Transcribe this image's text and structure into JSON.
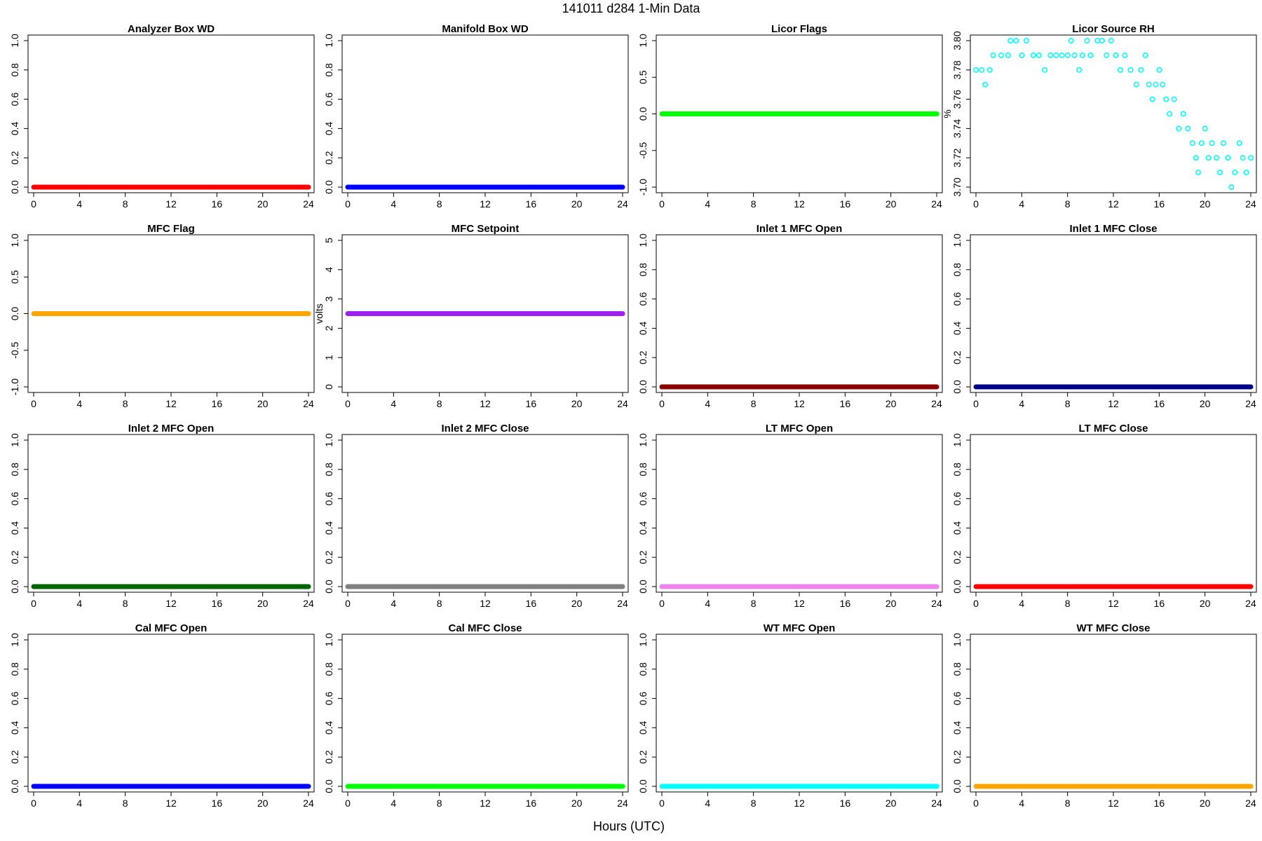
{
  "figure": {
    "title": "141011   d284   1-Min Data",
    "xlabel": "Hours (UTC)"
  },
  "chart_data": [
    {
      "type": "scatter",
      "title": "Analyzer Box WD",
      "ylabel": "",
      "color": "#ff0000",
      "ylim": [
        0,
        1
      ],
      "yticks": [
        "0.0",
        "0.2",
        "0.4",
        "0.6",
        "0.8",
        "1.0"
      ],
      "xlim": [
        0,
        24
      ],
      "xticks": [
        "0",
        "4",
        "8",
        "12",
        "16",
        "20",
        "24"
      ],
      "series": [
        {
          "x_range": [
            0,
            24
          ],
          "value": 0
        }
      ]
    },
    {
      "type": "scatter",
      "title": "Manifold Box WD",
      "ylabel": "",
      "color": "#0000ff",
      "ylim": [
        0,
        1
      ],
      "yticks": [
        "0.0",
        "0.2",
        "0.4",
        "0.6",
        "0.8",
        "1.0"
      ],
      "xlim": [
        0,
        24
      ],
      "xticks": [
        "0",
        "4",
        "8",
        "12",
        "16",
        "20",
        "24"
      ],
      "series": [
        {
          "x_range": [
            0,
            24
          ],
          "value": 0
        }
      ]
    },
    {
      "type": "scatter",
      "title": "Licor Flags",
      "ylabel": "",
      "color": "#00ff00",
      "ylim": [
        -1,
        1
      ],
      "yticks": [
        "-1.0",
        "-0.5",
        "0.0",
        "0.5",
        "1.0"
      ],
      "xlim": [
        0,
        24
      ],
      "xticks": [
        "0",
        "4",
        "8",
        "12",
        "16",
        "20",
        "24"
      ],
      "series": [
        {
          "x_range": [
            0,
            24
          ],
          "value": 0
        }
      ]
    },
    {
      "type": "scatter",
      "title": "Licor Source RH",
      "ylabel": "%",
      "color": "#00ffff",
      "ylim": [
        3.7,
        3.8
      ],
      "yticks": [
        "3.70",
        "3.72",
        "3.74",
        "3.76",
        "3.78",
        "3.80"
      ],
      "xlim": [
        0,
        24
      ],
      "xticks": [
        "0",
        "4",
        "8",
        "12",
        "16",
        "20",
        "24"
      ],
      "points": [
        [
          0,
          3.78
        ],
        [
          0.5,
          3.78
        ],
        [
          0.8,
          3.77
        ],
        [
          1.2,
          3.78
        ],
        [
          1.5,
          3.79
        ],
        [
          2.2,
          3.79
        ],
        [
          2.8,
          3.79
        ],
        [
          3.0,
          3.8
        ],
        [
          3.5,
          3.8
        ],
        [
          4.0,
          3.79
        ],
        [
          4.4,
          3.8
        ],
        [
          5.0,
          3.79
        ],
        [
          5.5,
          3.79
        ],
        [
          6.0,
          3.78
        ],
        [
          6.5,
          3.79
        ],
        [
          7.0,
          3.79
        ],
        [
          7.5,
          3.79
        ],
        [
          8.0,
          3.79
        ],
        [
          8.3,
          3.8
        ],
        [
          8.6,
          3.79
        ],
        [
          9.0,
          3.78
        ],
        [
          9.3,
          3.79
        ],
        [
          9.7,
          3.8
        ],
        [
          10.0,
          3.79
        ],
        [
          10.6,
          3.8
        ],
        [
          11.0,
          3.8
        ],
        [
          11.4,
          3.79
        ],
        [
          11.8,
          3.8
        ],
        [
          12.2,
          3.79
        ],
        [
          12.6,
          3.78
        ],
        [
          13.0,
          3.79
        ],
        [
          13.5,
          3.78
        ],
        [
          14.0,
          3.77
        ],
        [
          14.4,
          3.78
        ],
        [
          14.8,
          3.79
        ],
        [
          15.1,
          3.77
        ],
        [
          15.4,
          3.76
        ],
        [
          15.7,
          3.77
        ],
        [
          16.0,
          3.78
        ],
        [
          16.3,
          3.77
        ],
        [
          16.6,
          3.76
        ],
        [
          16.9,
          3.75
        ],
        [
          17.3,
          3.76
        ],
        [
          17.7,
          3.74
        ],
        [
          18.1,
          3.75
        ],
        [
          18.5,
          3.74
        ],
        [
          18.9,
          3.73
        ],
        [
          19.2,
          3.72
        ],
        [
          19.4,
          3.71
        ],
        [
          19.7,
          3.73
        ],
        [
          20.0,
          3.74
        ],
        [
          20.3,
          3.72
        ],
        [
          20.6,
          3.73
        ],
        [
          21.0,
          3.72
        ],
        [
          21.3,
          3.71
        ],
        [
          21.6,
          3.73
        ],
        [
          22.0,
          3.72
        ],
        [
          22.3,
          3.7
        ],
        [
          22.6,
          3.71
        ],
        [
          23.0,
          3.73
        ],
        [
          23.3,
          3.72
        ],
        [
          23.6,
          3.71
        ],
        [
          24.0,
          3.72
        ]
      ]
    },
    {
      "type": "scatter",
      "title": "MFC Flag",
      "ylabel": "",
      "color": "#ffa500",
      "ylim": [
        -1,
        1
      ],
      "yticks": [
        "-1.0",
        "-0.5",
        "0.0",
        "0.5",
        "1.0"
      ],
      "xlim": [
        0,
        24
      ],
      "xticks": [
        "0",
        "4",
        "8",
        "12",
        "16",
        "20",
        "24"
      ],
      "series": [
        {
          "x_range": [
            0,
            24
          ],
          "value": 0
        }
      ]
    },
    {
      "type": "scatter",
      "title": "MFC Setpoint",
      "ylabel": "volts",
      "color": "#a020f0",
      "ylim": [
        0,
        5
      ],
      "yticks": [
        "0",
        "1",
        "2",
        "3",
        "4",
        "5"
      ],
      "xlim": [
        0,
        24
      ],
      "xticks": [
        "0",
        "4",
        "8",
        "12",
        "16",
        "20",
        "24"
      ],
      "series": [
        {
          "x_range": [
            0,
            24
          ],
          "value": 2.5
        }
      ]
    },
    {
      "type": "scatter",
      "title": "Inlet 1 MFC Open",
      "ylabel": "",
      "color": "#8b0000",
      "ylim": [
        0,
        1
      ],
      "yticks": [
        "0.0",
        "0.2",
        "0.4",
        "0.6",
        "0.8",
        "1.0"
      ],
      "xlim": [
        0,
        24
      ],
      "xticks": [
        "0",
        "4",
        "8",
        "12",
        "16",
        "20",
        "24"
      ],
      "series": [
        {
          "x_range": [
            0,
            24
          ],
          "value": 0
        }
      ]
    },
    {
      "type": "scatter",
      "title": "Inlet 1 MFC Close",
      "ylabel": "",
      "color": "#00008b",
      "ylim": [
        0,
        1
      ],
      "yticks": [
        "0.0",
        "0.2",
        "0.4",
        "0.6",
        "0.8",
        "1.0"
      ],
      "xlim": [
        0,
        24
      ],
      "xticks": [
        "0",
        "4",
        "8",
        "12",
        "16",
        "20",
        "24"
      ],
      "series": [
        {
          "x_range": [
            0,
            24
          ],
          "value": 0
        }
      ]
    },
    {
      "type": "scatter",
      "title": "Inlet 2 MFC Open",
      "ylabel": "",
      "color": "#006400",
      "ylim": [
        0,
        1
      ],
      "yticks": [
        "0.0",
        "0.2",
        "0.4",
        "0.6",
        "0.8",
        "1.0"
      ],
      "xlim": [
        0,
        24
      ],
      "xticks": [
        "0",
        "4",
        "8",
        "12",
        "16",
        "20",
        "24"
      ],
      "series": [
        {
          "x_range": [
            0,
            24
          ],
          "value": 0
        }
      ]
    },
    {
      "type": "scatter",
      "title": "Inlet 2 MFC Close",
      "ylabel": "",
      "color": "#808080",
      "ylim": [
        0,
        1
      ],
      "yticks": [
        "0.0",
        "0.2",
        "0.4",
        "0.6",
        "0.8",
        "1.0"
      ],
      "xlim": [
        0,
        24
      ],
      "xticks": [
        "0",
        "4",
        "8",
        "12",
        "16",
        "20",
        "24"
      ],
      "series": [
        {
          "x_range": [
            0,
            24
          ],
          "value": 0
        }
      ]
    },
    {
      "type": "scatter",
      "title": "LT MFC Open",
      "ylabel": "",
      "color": "#ee82ee",
      "ylim": [
        0,
        1
      ],
      "yticks": [
        "0.0",
        "0.2",
        "0.4",
        "0.6",
        "0.8",
        "1.0"
      ],
      "xlim": [
        0,
        24
      ],
      "xticks": [
        "0",
        "4",
        "8",
        "12",
        "16",
        "20",
        "24"
      ],
      "series": [
        {
          "x_range": [
            0,
            24
          ],
          "value": 0
        }
      ]
    },
    {
      "type": "scatter",
      "title": "LT MFC Close",
      "ylabel": "",
      "color": "#ff0000",
      "ylim": [
        0,
        1
      ],
      "yticks": [
        "0.0",
        "0.2",
        "0.4",
        "0.6",
        "0.8",
        "1.0"
      ],
      "xlim": [
        0,
        24
      ],
      "xticks": [
        "0",
        "4",
        "8",
        "12",
        "16",
        "20",
        "24"
      ],
      "series": [
        {
          "x_range": [
            0,
            24
          ],
          "value": 0
        }
      ]
    },
    {
      "type": "scatter",
      "title": "Cal MFC Open",
      "ylabel": "",
      "color": "#0000ff",
      "ylim": [
        0,
        1
      ],
      "yticks": [
        "0.0",
        "0.2",
        "0.4",
        "0.6",
        "0.8",
        "1.0"
      ],
      "xlim": [
        0,
        24
      ],
      "xticks": [
        "0",
        "4",
        "8",
        "12",
        "16",
        "20",
        "24"
      ],
      "series": [
        {
          "x_range": [
            0,
            24
          ],
          "value": 0
        }
      ]
    },
    {
      "type": "scatter",
      "title": "Cal MFC Close",
      "ylabel": "",
      "color": "#00ff00",
      "ylim": [
        0,
        1
      ],
      "yticks": [
        "0.0",
        "0.2",
        "0.4",
        "0.6",
        "0.8",
        "1.0"
      ],
      "xlim": [
        0,
        24
      ],
      "xticks": [
        "0",
        "4",
        "8",
        "12",
        "16",
        "20",
        "24"
      ],
      "series": [
        {
          "x_range": [
            0,
            24
          ],
          "value": 0
        }
      ]
    },
    {
      "type": "scatter",
      "title": "WT MFC Open",
      "ylabel": "",
      "color": "#00ffff",
      "ylim": [
        0,
        1
      ],
      "yticks": [
        "0.0",
        "0.2",
        "0.4",
        "0.6",
        "0.8",
        "1.0"
      ],
      "xlim": [
        0,
        24
      ],
      "xticks": [
        "0",
        "4",
        "8",
        "12",
        "16",
        "20",
        "24"
      ],
      "series": [
        {
          "x_range": [
            0,
            24
          ],
          "value": 0
        }
      ]
    },
    {
      "type": "scatter",
      "title": "WT MFC Close",
      "ylabel": "",
      "color": "#ffa500",
      "ylim": [
        0,
        1
      ],
      "yticks": [
        "0.0",
        "0.2",
        "0.4",
        "0.6",
        "0.8",
        "1.0"
      ],
      "xlim": [
        0,
        24
      ],
      "xticks": [
        "0",
        "4",
        "8",
        "12",
        "16",
        "20",
        "24"
      ],
      "series": [
        {
          "x_range": [
            0,
            24
          ],
          "value": 0
        }
      ]
    }
  ]
}
